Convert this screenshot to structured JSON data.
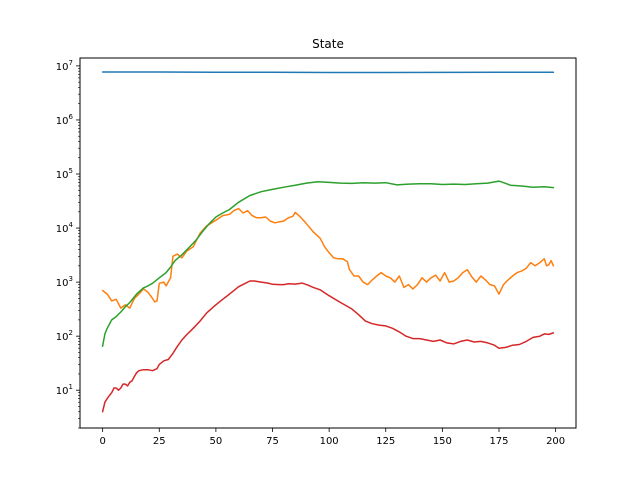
{
  "chart_data": {
    "type": "line",
    "title": "State",
    "xlabel": "",
    "ylabel": "",
    "xlim": [
      -10,
      209
    ],
    "ylim": [
      2,
      14000000
    ],
    "yscale": "log",
    "grid": false,
    "x_ticks": [
      0,
      25,
      50,
      75,
      100,
      125,
      150,
      175,
      200
    ],
    "y_ticks": [
      {
        "value": 10,
        "label": "10^1"
      },
      {
        "value": 100,
        "label": "10^2"
      },
      {
        "value": 1000,
        "label": "10^3"
      },
      {
        "value": 10000,
        "label": "10^4"
      },
      {
        "value": 100000,
        "label": "10^5"
      },
      {
        "value": 1000000,
        "label": "10^6"
      },
      {
        "value": 10000000,
        "label": "10^7"
      }
    ],
    "series": [
      {
        "color": "#1f77b4",
        "points": [
          [
            0,
            7700000
          ],
          [
            25,
            7700000
          ],
          [
            50,
            7650000
          ],
          [
            75,
            7600000
          ],
          [
            100,
            7550000
          ],
          [
            125,
            7550000
          ],
          [
            150,
            7580000
          ],
          [
            175,
            7600000
          ],
          [
            199,
            7600000
          ]
        ]
      },
      {
        "color": "#ff7f0e",
        "points": [
          [
            0,
            700
          ],
          [
            2,
            600
          ],
          [
            4,
            450
          ],
          [
            6,
            480
          ],
          [
            8,
            330
          ],
          [
            10,
            380
          ],
          [
            12,
            330
          ],
          [
            14,
            500
          ],
          [
            16,
            600
          ],
          [
            18,
            750
          ],
          [
            20,
            650
          ],
          [
            22,
            500
          ],
          [
            23,
            430
          ],
          [
            24,
            450
          ],
          [
            25,
            950
          ],
          [
            27,
            1000
          ],
          [
            28,
            850
          ],
          [
            30,
            1200
          ],
          [
            31,
            3000
          ],
          [
            33,
            3300
          ],
          [
            35,
            2800
          ],
          [
            37,
            3700
          ],
          [
            40,
            4500
          ],
          [
            43,
            8000
          ],
          [
            46,
            11000
          ],
          [
            50,
            14000
          ],
          [
            53,
            17000
          ],
          [
            56,
            18000
          ],
          [
            58,
            21000
          ],
          [
            60,
            23000
          ],
          [
            62,
            19000
          ],
          [
            64,
            21000
          ],
          [
            66,
            17000
          ],
          [
            68,
            15500
          ],
          [
            70,
            15500
          ],
          [
            72,
            16000
          ],
          [
            74,
            13500
          ],
          [
            76,
            12500
          ],
          [
            78,
            13000
          ],
          [
            80,
            13500
          ],
          [
            82,
            15500
          ],
          [
            84,
            16500
          ],
          [
            85,
            19500
          ],
          [
            87,
            16500
          ],
          [
            90,
            12000
          ],
          [
            93,
            8500
          ],
          [
            96,
            6500
          ],
          [
            98,
            4500
          ],
          [
            100,
            3500
          ],
          [
            102,
            2800
          ],
          [
            104,
            2700
          ],
          [
            106,
            2700
          ],
          [
            108,
            2400
          ],
          [
            109,
            1700
          ],
          [
            111,
            1300
          ],
          [
            113,
            1300
          ],
          [
            115,
            1000
          ],
          [
            117,
            900
          ],
          [
            119,
            1100
          ],
          [
            121,
            1300
          ],
          [
            123,
            1500
          ],
          [
            125,
            1300
          ],
          [
            127,
            1200
          ],
          [
            129,
            1000
          ],
          [
            131,
            1300
          ],
          [
            133,
            800
          ],
          [
            135,
            900
          ],
          [
            137,
            750
          ],
          [
            139,
            900
          ],
          [
            141,
            1200
          ],
          [
            143,
            1000
          ],
          [
            145,
            1200
          ],
          [
            147,
            1350
          ],
          [
            149,
            1050
          ],
          [
            151,
            1500
          ],
          [
            153,
            1000
          ],
          [
            155,
            1050
          ],
          [
            157,
            1200
          ],
          [
            159,
            1500
          ],
          [
            161,
            1700
          ],
          [
            163,
            1250
          ],
          [
            165,
            1000
          ],
          [
            167,
            1300
          ],
          [
            169,
            1100
          ],
          [
            171,
            900
          ],
          [
            173,
            850
          ],
          [
            175,
            600
          ],
          [
            177,
            900
          ],
          [
            179,
            1100
          ],
          [
            181,
            1300
          ],
          [
            183,
            1500
          ],
          [
            185,
            1600
          ],
          [
            187,
            1800
          ],
          [
            189,
            2300
          ],
          [
            191,
            2000
          ],
          [
            193,
            2300
          ],
          [
            195,
            2700
          ],
          [
            196,
            2000
          ],
          [
            197,
            2100
          ],
          [
            198,
            2500
          ],
          [
            199,
            2000
          ]
        ]
      },
      {
        "color": "#2ca02c",
        "points": [
          [
            0,
            65
          ],
          [
            1,
            110
          ],
          [
            2,
            140
          ],
          [
            4,
            200
          ],
          [
            6,
            230
          ],
          [
            8,
            280
          ],
          [
            10,
            350
          ],
          [
            12,
            420
          ],
          [
            15,
            600
          ],
          [
            18,
            780
          ],
          [
            20,
            850
          ],
          [
            22,
            950
          ],
          [
            25,
            1200
          ],
          [
            28,
            1500
          ],
          [
            30,
            1900
          ],
          [
            32,
            2500
          ],
          [
            35,
            3200
          ],
          [
            38,
            4300
          ],
          [
            41,
            5800
          ],
          [
            44,
            8500
          ],
          [
            47,
            12000
          ],
          [
            50,
            16000
          ],
          [
            53,
            19000
          ],
          [
            56,
            22000
          ],
          [
            60,
            30000
          ],
          [
            65,
            40000
          ],
          [
            70,
            47000
          ],
          [
            75,
            52000
          ],
          [
            80,
            57000
          ],
          [
            85,
            62000
          ],
          [
            90,
            68000
          ],
          [
            95,
            72000
          ],
          [
            100,
            70000
          ],
          [
            105,
            68000
          ],
          [
            110,
            67000
          ],
          [
            115,
            69000
          ],
          [
            120,
            68000
          ],
          [
            125,
            69000
          ],
          [
            130,
            63000
          ],
          [
            135,
            65000
          ],
          [
            140,
            66000
          ],
          [
            145,
            66000
          ],
          [
            150,
            64000
          ],
          [
            155,
            65000
          ],
          [
            160,
            64000
          ],
          [
            165,
            66000
          ],
          [
            170,
            68000
          ],
          [
            175,
            74000
          ],
          [
            178,
            67000
          ],
          [
            180,
            62000
          ],
          [
            185,
            60000
          ],
          [
            190,
            57000
          ],
          [
            195,
            58000
          ],
          [
            199,
            56000
          ]
        ]
      },
      {
        "color": "#d62728",
        "points": [
          [
            0,
            4
          ],
          [
            1,
            6
          ],
          [
            2,
            7
          ],
          [
            3,
            8
          ],
          [
            4,
            9
          ],
          [
            5,
            11
          ],
          [
            6,
            11
          ],
          [
            7,
            10
          ],
          [
            8,
            11
          ],
          [
            9,
            13
          ],
          [
            10,
            13
          ],
          [
            11,
            12
          ],
          [
            12,
            14
          ],
          [
            13,
            15
          ],
          [
            14,
            18
          ],
          [
            15,
            21
          ],
          [
            16,
            23
          ],
          [
            18,
            24
          ],
          [
            20,
            24
          ],
          [
            22,
            23
          ],
          [
            24,
            25
          ],
          [
            25,
            30
          ],
          [
            27,
            35
          ],
          [
            29,
            37
          ],
          [
            31,
            48
          ],
          [
            33,
            65
          ],
          [
            35,
            85
          ],
          [
            37,
            105
          ],
          [
            40,
            140
          ],
          [
            43,
            190
          ],
          [
            46,
            270
          ],
          [
            50,
            380
          ],
          [
            53,
            480
          ],
          [
            56,
            600
          ],
          [
            60,
            820
          ],
          [
            63,
            950
          ],
          [
            65,
            1050
          ],
          [
            67,
            1050
          ],
          [
            70,
            1000
          ],
          [
            73,
            960
          ],
          [
            75,
            910
          ],
          [
            78,
            900
          ],
          [
            80,
            900
          ],
          [
            82,
            930
          ],
          [
            85,
            920
          ],
          [
            88,
            960
          ],
          [
            90,
            900
          ],
          [
            93,
            800
          ],
          [
            96,
            720
          ],
          [
            100,
            560
          ],
          [
            105,
            420
          ],
          [
            110,
            320
          ],
          [
            113,
            250
          ],
          [
            116,
            190
          ],
          [
            119,
            170
          ],
          [
            122,
            160
          ],
          [
            125,
            155
          ],
          [
            128,
            140
          ],
          [
            131,
            120
          ],
          [
            134,
            100
          ],
          [
            137,
            90
          ],
          [
            140,
            90
          ],
          [
            143,
            85
          ],
          [
            146,
            80
          ],
          [
            149,
            85
          ],
          [
            152,
            75
          ],
          [
            155,
            72
          ],
          [
            158,
            80
          ],
          [
            161,
            85
          ],
          [
            164,
            78
          ],
          [
            167,
            80
          ],
          [
            170,
            75
          ],
          [
            173,
            68
          ],
          [
            175,
            60
          ],
          [
            178,
            62
          ],
          [
            181,
            68
          ],
          [
            184,
            70
          ],
          [
            187,
            80
          ],
          [
            190,
            95
          ],
          [
            193,
            100
          ],
          [
            195,
            110
          ],
          [
            197,
            108
          ],
          [
            199,
            115
          ]
        ]
      }
    ]
  }
}
